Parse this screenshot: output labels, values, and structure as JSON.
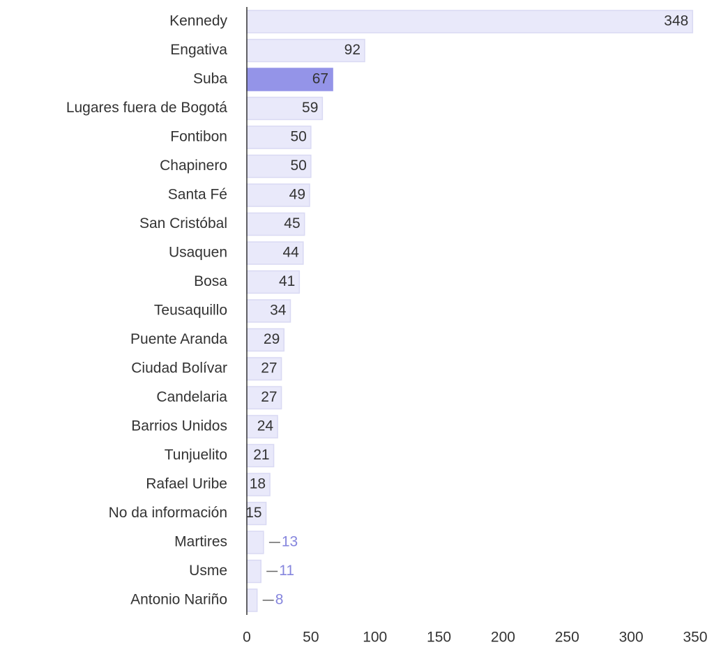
{
  "chart_data": {
    "type": "bar",
    "orientation": "horizontal",
    "categories": [
      "Kennedy",
      "Engativa",
      "Suba",
      "Lugares fuera de Bogotá",
      "Fontibon",
      "Chapinero",
      "Santa Fé",
      "San Cristóbal",
      "Usaquen",
      "Bosa",
      "Teusaquillo",
      "Puente Aranda",
      "Ciudad Bolívar",
      "Candelaria",
      "Barrios Unidos",
      "Tunjuelito",
      "Rafael Uribe",
      "No da información",
      "Martires",
      "Usme",
      "Antonio Nariño"
    ],
    "values": [
      348,
      92,
      67,
      59,
      50,
      50,
      49,
      45,
      44,
      41,
      34,
      29,
      27,
      27,
      24,
      21,
      18,
      15,
      13,
      11,
      8
    ],
    "colors": [
      "#e9e9fa",
      "#e9e9fa",
      "#9494e8",
      "#e9e9fa",
      "#e9e9fa",
      "#e9e9fa",
      "#e9e9fa",
      "#e9e9fa",
      "#e9e9fa",
      "#e9e9fa",
      "#e9e9fa",
      "#e9e9fa",
      "#e9e9fa",
      "#e9e9fa",
      "#e9e9fa",
      "#e9e9fa",
      "#e9e9fa",
      "#e9e9fa",
      "#e9e9fa",
      "#e9e9fa",
      "#e9e9fa"
    ],
    "xlim": [
      0,
      350
    ],
    "xticks": [
      0,
      50,
      100,
      150,
      200,
      250,
      300,
      350
    ]
  }
}
